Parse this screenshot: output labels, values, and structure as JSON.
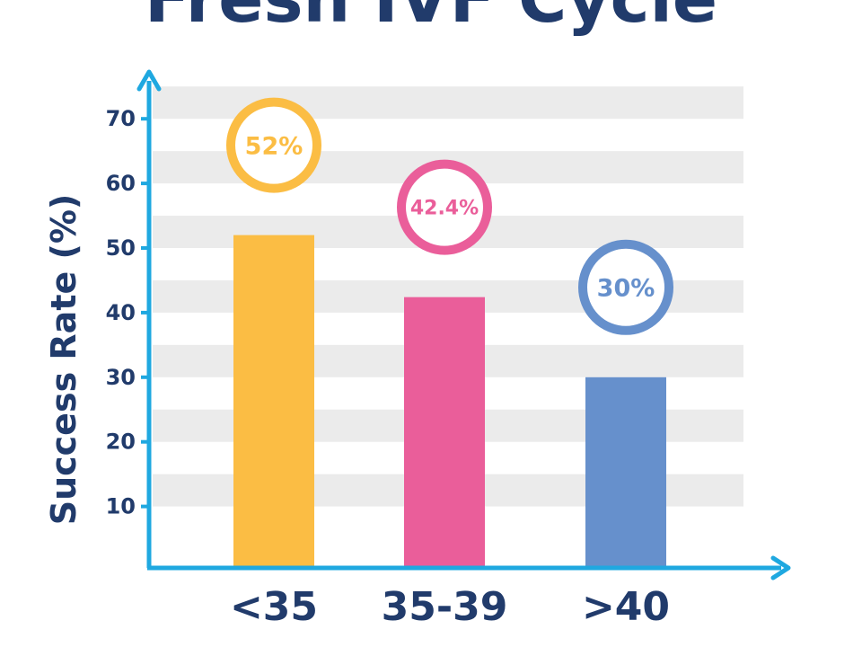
{
  "chart_data": {
    "type": "bar",
    "title": "Fresh IVF Cycle",
    "ylabel": "Success Rate (%)",
    "xlabel": "",
    "categories": [
      "<35",
      "35-39",
      ">40"
    ],
    "values": [
      52,
      42.4,
      30
    ],
    "data_labels": [
      "52%",
      "42.4%",
      "30%"
    ],
    "ylim": [
      0,
      75
    ],
    "yticks": [
      10,
      20,
      30,
      40,
      50,
      60,
      70
    ],
    "grid": "alternating horizontal bands",
    "colors": {
      "bars": [
        "#fbbd44",
        "#ea5e9a",
        "#6690cc"
      ],
      "axis": "#1fa8e0",
      "band": "#ebebeb",
      "text": "#213b6b",
      "label_circle_fill": "#ffffff"
    }
  }
}
